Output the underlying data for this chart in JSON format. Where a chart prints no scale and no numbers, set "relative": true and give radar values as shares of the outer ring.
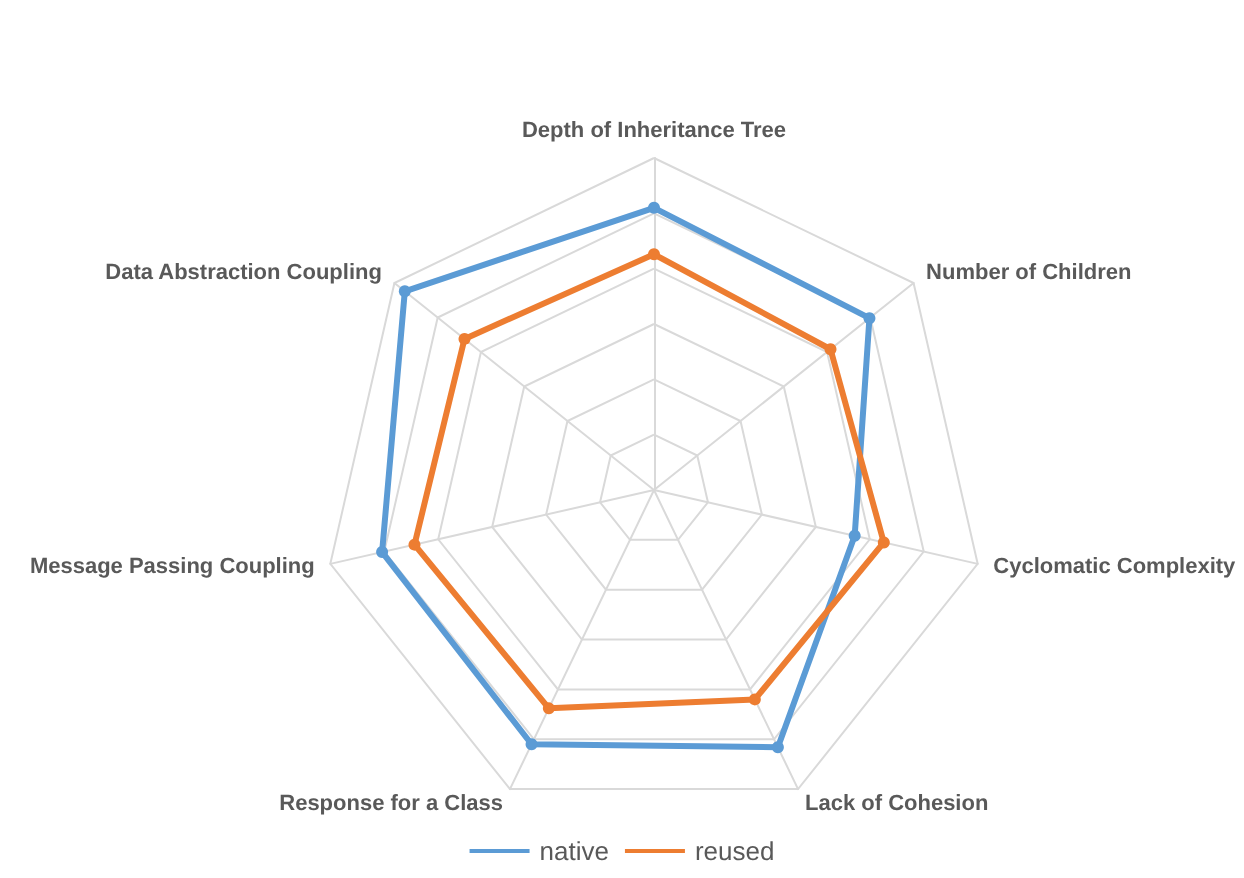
{
  "chart_data": {
    "type": "radar",
    "relative": true,
    "grid": true,
    "legend": "bottom",
    "marker": "circle",
    "line_style": "solid",
    "categories": [
      "Depth of Inheritance Tree",
      "Number of Children",
      "Cyclomatic Complexity",
      "Lack of Cohesion",
      "Response for a Class",
      "Message Passing Coupling",
      "Data Abstraction Coupling"
    ],
    "series": [
      {
        "name": "native",
        "color": "#5b9bd5",
        "values": [
          0.85,
          0.83,
          0.62,
          0.86,
          0.85,
          0.84,
          0.96
        ]
      },
      {
        "name": "reused",
        "color": "#ed7d31",
        "values": [
          0.71,
          0.68,
          0.71,
          0.7,
          0.73,
          0.74,
          0.73
        ]
      }
    ]
  }
}
